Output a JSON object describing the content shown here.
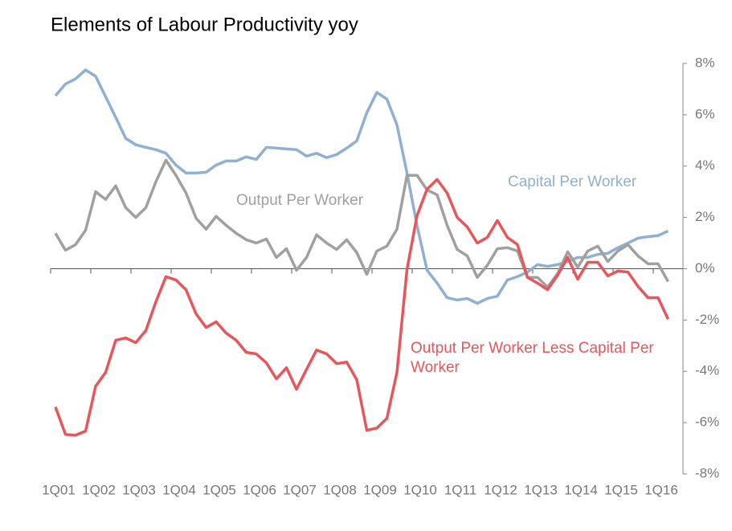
{
  "chart_data": {
    "type": "line",
    "title": "Elements of Labour Productivity yoy",
    "categories": [
      "1Q01",
      null,
      null,
      null,
      "1Q02",
      null,
      null,
      null,
      "1Q03",
      null,
      null,
      null,
      "1Q04",
      null,
      null,
      null,
      "1Q05",
      null,
      null,
      null,
      "1Q06",
      null,
      null,
      null,
      "1Q07",
      null,
      null,
      null,
      "1Q08",
      null,
      null,
      null,
      "1Q09",
      null,
      null,
      null,
      "1Q10",
      null,
      null,
      null,
      "1Q11",
      null,
      null,
      null,
      "1Q12",
      null,
      null,
      null,
      "1Q13",
      null,
      null,
      null,
      "1Q14",
      null,
      null,
      null,
      "1Q15",
      null,
      null,
      null,
      "1Q16",
      null
    ],
    "series": [
      {
        "name": "Capital Per Worker",
        "color": "#8fb0d3",
        "values": [
          6.74,
          7.2,
          7.4,
          7.75,
          7.5,
          6.7,
          5.9,
          5.08,
          4.83,
          4.73,
          4.64,
          4.5,
          4.04,
          3.73,
          3.73,
          3.76,
          4.04,
          4.2,
          4.2,
          4.36,
          4.26,
          4.73,
          4.7,
          4.67,
          4.64,
          4.39,
          4.5,
          4.33,
          4.45,
          4.7,
          4.98,
          6.08,
          6.87,
          6.61,
          5.61,
          3.73,
          1.69,
          -0.06,
          -0.56,
          -1.13,
          -1.22,
          -1.16,
          -1.35,
          -1.16,
          -1.07,
          -0.44,
          -0.31,
          -0.13,
          0.16,
          0.09,
          0.16,
          0.28,
          0.44,
          0.44,
          0.56,
          0.6,
          0.82,
          1.0,
          1.19,
          1.25,
          1.29,
          1.47
        ]
      },
      {
        "name": "Output Per Worker",
        "color": "#a0a0a0",
        "values": [
          1.38,
          0.72,
          0.94,
          1.5,
          3.0,
          2.7,
          3.23,
          2.38,
          2.0,
          2.38,
          3.39,
          4.23,
          3.64,
          2.95,
          1.97,
          1.54,
          2.04,
          1.69,
          1.38,
          1.13,
          1.0,
          1.16,
          0.44,
          0.78,
          -0.06,
          0.44,
          1.32,
          1.0,
          0.75,
          1.13,
          0.63,
          -0.22,
          0.69,
          0.88,
          1.54,
          3.64,
          3.64,
          3.07,
          2.88,
          1.69,
          0.75,
          0.5,
          -0.34,
          0.13,
          0.78,
          0.82,
          0.69,
          -0.34,
          -0.34,
          -0.72,
          -0.19,
          0.66,
          0.06,
          0.69,
          0.88,
          0.28,
          0.69,
          0.94,
          0.5,
          0.19,
          0.19,
          -0.5
        ]
      },
      {
        "name": "Output Per Worker Less Capital Per Worker",
        "color": "#e8555a",
        "values": [
          -5.39,
          -6.46,
          -6.49,
          -6.33,
          -4.58,
          -4.04,
          -2.79,
          -2.7,
          -2.88,
          -2.41,
          -1.29,
          -0.31,
          -0.44,
          -0.82,
          -1.76,
          -2.29,
          -2.07,
          -2.51,
          -2.79,
          -3.26,
          -3.32,
          -3.67,
          -4.29,
          -3.86,
          -4.7,
          -3.92,
          -3.17,
          -3.32,
          -3.7,
          -3.64,
          -4.33,
          -6.3,
          -6.21,
          -5.83,
          -4.04,
          -0.03,
          2.07,
          3.1,
          3.48,
          2.95,
          2.0,
          1.63,
          1.0,
          1.22,
          1.88,
          1.22,
          0.94,
          -0.34,
          -0.56,
          -0.82,
          -0.25,
          0.44,
          -0.41,
          0.25,
          0.25,
          -0.28,
          -0.09,
          -0.13,
          -0.69,
          -1.13,
          -1.13,
          -1.97
        ]
      }
    ],
    "ylim": [
      -8,
      8
    ],
    "yticks": [
      {
        "value": 8,
        "label": "8%"
      },
      {
        "value": 6,
        "label": "6%"
      },
      {
        "value": 4,
        "label": "4%"
      },
      {
        "value": 2,
        "label": "2%"
      },
      {
        "value": 0,
        "label": "0%"
      },
      {
        "value": -2,
        "label": "-2%"
      },
      {
        "value": -4,
        "label": "-4%"
      },
      {
        "value": -6,
        "label": "-6%"
      },
      {
        "value": -8,
        "label": "-8%"
      }
    ],
    "y_axis_side": "right",
    "grid": false
  }
}
